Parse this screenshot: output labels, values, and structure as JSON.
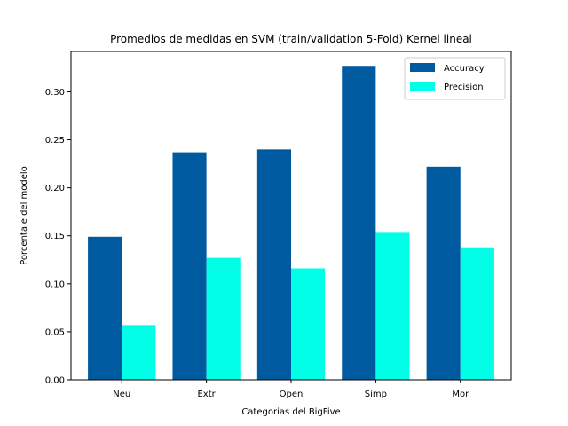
{
  "chart_data": {
    "type": "bar",
    "title": "Promedios de medidas en SVM (train/validation 5-Fold) Kernel lineal",
    "xlabel": "Categorias del BigFive",
    "ylabel": "Porcentaje del modelo",
    "categories": [
      "Neu",
      "Extr",
      "Open",
      "Simp",
      "Mor"
    ],
    "series": [
      {
        "name": "Accuracy",
        "color": "#005aa0",
        "values": [
          0.149,
          0.237,
          0.24,
          0.327,
          0.222
        ]
      },
      {
        "name": "Precision",
        "color": "#00ffe6",
        "values": [
          0.057,
          0.127,
          0.116,
          0.154,
          0.138
        ]
      }
    ],
    "ylim": [
      0,
      0.342
    ],
    "yticks": [
      0.0,
      0.05,
      0.1,
      0.15,
      0.2,
      0.25,
      0.3
    ],
    "ytick_labels": [
      "0.00",
      "0.05",
      "0.10",
      "0.15",
      "0.20",
      "0.25",
      "0.30"
    ],
    "grid": false,
    "legend_position": "top-right"
  }
}
